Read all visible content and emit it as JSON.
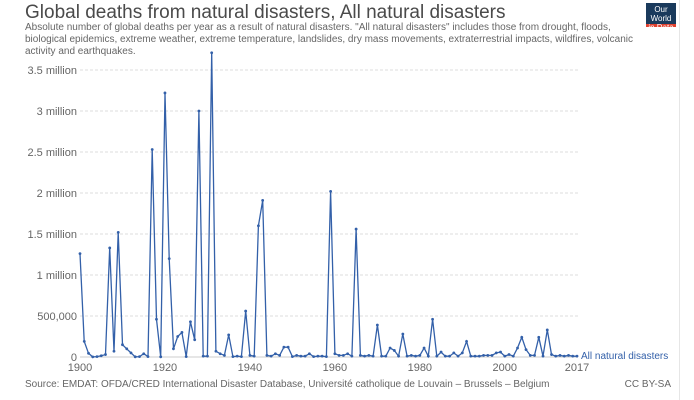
{
  "header": {
    "title": "Global deaths from natural disasters, All natural disasters",
    "subtitle": "Absolute number of global deaths per year as a result of natural disasters. \"All natural disasters\" includes those from drought, floods, biological epidemics, extreme weather, extreme temperature, landslides, dry mass movements, extraterrestrial impacts, wildfires, volcanic activity and earthquakes.",
    "logo": "Our World in Data"
  },
  "footer": {
    "source": "Source: EMDAT: OFDA/CRED International Disaster Database, Université catholique de Louvain – Brussels – Belgium",
    "license": "CC BY-SA"
  },
  "chart_data": {
    "type": "line",
    "title": "Global deaths from natural disasters, All natural disasters",
    "xlabel": "",
    "ylabel": "",
    "xlim": [
      1900,
      2017
    ],
    "ylim": [
      0,
      3500000
    ],
    "grid": true,
    "line_color": "#3360a9",
    "x_ticks": [
      1900,
      1920,
      1940,
      1960,
      1980,
      2000,
      2017
    ],
    "x_tick_labels": [
      "1900",
      "1920",
      "1940",
      "1960",
      "1980",
      "2000",
      "2017"
    ],
    "y_ticks": [
      0,
      500000,
      1000000,
      1500000,
      2000000,
      2500000,
      3000000,
      3500000
    ],
    "y_tick_labels": [
      "0",
      "500,000",
      "1 million",
      "1.5 million",
      "2 million",
      "2.5 million",
      "3 million",
      "3.5 million"
    ],
    "series": [
      {
        "name": "All natural disasters",
        "x": [
          1900,
          1901,
          1902,
          1903,
          1904,
          1905,
          1906,
          1907,
          1908,
          1909,
          1910,
          1911,
          1912,
          1913,
          1914,
          1915,
          1916,
          1917,
          1918,
          1919,
          1920,
          1921,
          1922,
          1923,
          1924,
          1925,
          1926,
          1927,
          1928,
          1929,
          1930,
          1931,
          1932,
          1933,
          1934,
          1935,
          1936,
          1937,
          1938,
          1939,
          1940,
          1941,
          1942,
          1943,
          1944,
          1945,
          1946,
          1947,
          1948,
          1949,
          1950,
          1951,
          1952,
          1953,
          1954,
          1955,
          1956,
          1957,
          1958,
          1959,
          1960,
          1961,
          1962,
          1963,
          1964,
          1965,
          1966,
          1967,
          1968,
          1969,
          1970,
          1971,
          1972,
          1973,
          1974,
          1975,
          1976,
          1977,
          1978,
          1979,
          1980,
          1981,
          1982,
          1983,
          1984,
          1985,
          1986,
          1987,
          1988,
          1989,
          1990,
          1991,
          1992,
          1993,
          1994,
          1995,
          1996,
          1997,
          1998,
          1999,
          2000,
          2001,
          2002,
          2003,
          2004,
          2005,
          2006,
          2007,
          2008,
          2009,
          2010,
          2011,
          2012,
          2013,
          2014,
          2015,
          2016,
          2017
        ],
        "values": [
          1260000,
          190000,
          45000,
          1000,
          5000,
          15000,
          30000,
          1330000,
          70000,
          1520000,
          150000,
          100000,
          50000,
          2000,
          5000,
          40000,
          5000,
          2530000,
          460000,
          2000,
          3220000,
          1200000,
          100000,
          250000,
          300000,
          5000,
          430000,
          210000,
          3000000,
          10000,
          10000,
          3710000,
          70000,
          40000,
          20000,
          270000,
          5000,
          10000,
          5000,
          560000,
          20000,
          10000,
          1600000,
          1910000,
          20000,
          10000,
          40000,
          20000,
          120000,
          120000,
          5000,
          20000,
          10000,
          10000,
          40000,
          5000,
          10000,
          10000,
          5000,
          2020000,
          40000,
          20000,
          20000,
          40000,
          10000,
          1560000,
          20000,
          10000,
          20000,
          10000,
          390000,
          10000,
          10000,
          110000,
          80000,
          10000,
          280000,
          10000,
          20000,
          10000,
          20000,
          110000,
          10000,
          460000,
          10000,
          60000,
          10000,
          10000,
          50000,
          10000,
          50000,
          190000,
          10000,
          10000,
          10000,
          20000,
          20000,
          20000,
          50000,
          60000,
          10000,
          30000,
          10000,
          110000,
          240000,
          90000,
          20000,
          20000,
          240000,
          10000,
          330000,
          30000,
          10000,
          20000,
          10000,
          20000,
          10000,
          10000
        ]
      }
    ]
  }
}
